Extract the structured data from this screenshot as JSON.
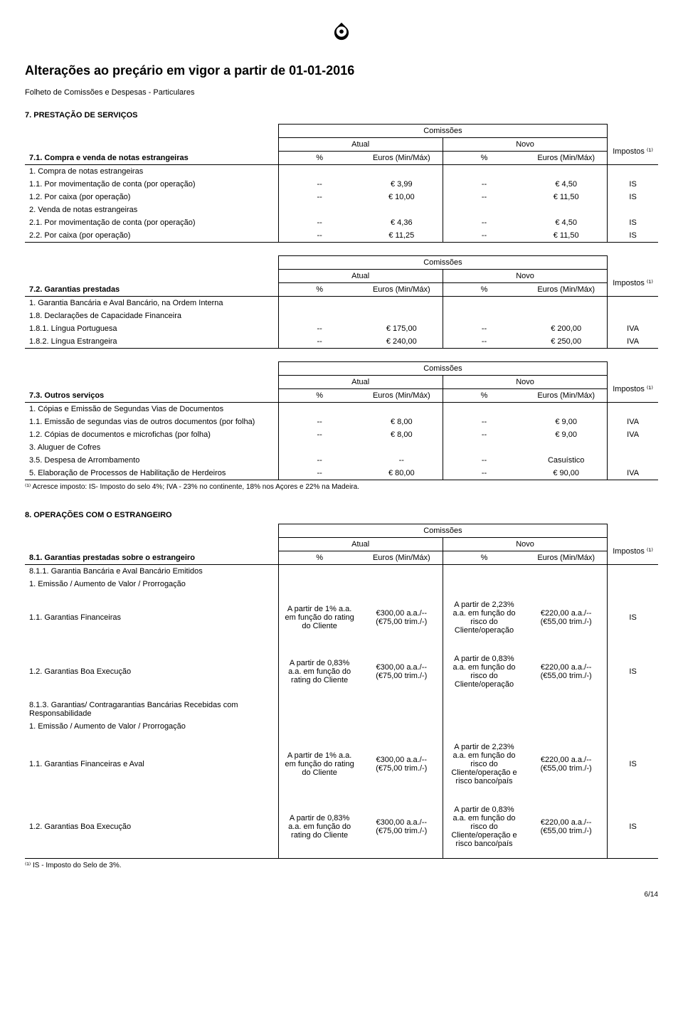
{
  "header": {
    "title": "Alterações ao preçário em vigor a partir de 01-01-2016",
    "subtitle": "Folheto de Comissões e Despesas - Particulares"
  },
  "labels": {
    "comissoes": "Comissões",
    "atual": "Atual",
    "novo": "Novo",
    "impostos": "Impostos ⁽¹⁾",
    "pct": "%",
    "euros": "Euros (Min/Máx)"
  },
  "section7": {
    "title": "7. PRESTAÇÃO DE SERVIÇOS",
    "t71": {
      "name": "7.1. Compra e venda de notas estrangeiras",
      "groups": [
        {
          "label": "1. Compra de notas estrangeiras",
          "rows": [
            {
              "desc": "1.1. Por movimentação de conta (por operação)",
              "a_pct": "--",
              "a_eur": "€ 3,99",
              "n_pct": "--",
              "n_eur": "€ 4,50",
              "tax": "IS"
            },
            {
              "desc": "1.2. Por caixa (por operação)",
              "a_pct": "--",
              "a_eur": "€ 10,00",
              "n_pct": "--",
              "n_eur": "€ 11,50",
              "tax": "IS"
            }
          ]
        },
        {
          "label": "2. Venda de notas estrangeiras",
          "rows": [
            {
              "desc": "2.1. Por movimentação de conta (por operação)",
              "a_pct": "--",
              "a_eur": "€ 4,36",
              "n_pct": "--",
              "n_eur": "€ 4,50",
              "tax": "IS"
            },
            {
              "desc": "2.2. Por caixa (por operação)",
              "a_pct": "--",
              "a_eur": "€ 11,25",
              "n_pct": "--",
              "n_eur": "€ 11,50",
              "tax": "IS"
            }
          ]
        }
      ]
    },
    "t72": {
      "name": "7.2. Garantias prestadas",
      "pre_rows": [
        "1. Garantia Bancária e Aval Bancário, na Ordem Interna",
        "1.8. Declarações de Capacidade Financeira"
      ],
      "rows": [
        {
          "desc": "1.8.1. Língua Portuguesa",
          "a_pct": "--",
          "a_eur": "€ 175,00",
          "n_pct": "--",
          "n_eur": "€ 200,00",
          "tax": "IVA"
        },
        {
          "desc": "1.8.2. Língua Estrangeira",
          "a_pct": "--",
          "a_eur": "€ 240,00",
          "n_pct": "--",
          "n_eur": "€ 250,00",
          "tax": "IVA"
        }
      ]
    },
    "t73": {
      "name": "7.3. Outros serviços",
      "pre_rows": [
        "1. Cópias e Emissão de Segundas Vias de Documentos"
      ],
      "rows": [
        {
          "desc": "1.1. Emissão de segundas vias de outros documentos (por folha)",
          "a_pct": "--",
          "a_eur": "€ 8,00",
          "n_pct": "--",
          "n_eur": "€ 9,00",
          "tax": "IVA"
        },
        {
          "desc": "1.2. Cópias de documentos e microfichas (por folha)",
          "a_pct": "--",
          "a_eur": "€ 8,00",
          "n_pct": "--",
          "n_eur": "€ 9,00",
          "tax": "IVA"
        }
      ],
      "mid_label": "3. Aluguer de Cofres",
      "mid_rows": [
        {
          "desc": "3.5. Despesa de Arrombamento",
          "a_pct": "--",
          "a_eur": "--",
          "n_pct": "--",
          "n_eur": "Casuístico",
          "tax": ""
        }
      ],
      "final_rows": [
        {
          "desc": "5. Elaboração de Processos de Habilitação de Herdeiros",
          "a_pct": "--",
          "a_eur": "€ 80,00",
          "n_pct": "--",
          "n_eur": "€ 90,00",
          "tax": "IVA"
        }
      ]
    },
    "footnote7": "⁽¹⁾ Acresce imposto: IS- Imposto do selo 4%; IVA - 23% no continente, 18% nos Açores e 22% na Madeira."
  },
  "section8": {
    "title": "8. OPERAÇÕES COM O ESTRANGEIRO",
    "t81": {
      "name": "8.1. Garantias prestadas sobre o estrangeiro",
      "sub1": "8.1.1. Garantia Bancária e Aval Bancário Emitidos",
      "emiss": "1. Emissão / Aumento de Valor / Prorrogação",
      "rows": [
        {
          "desc": "1.1. Garantias Financeiras",
          "a_pct": "A partir de 1% a.a. em função do rating do Cliente",
          "a_eur": "€300,00 a.a./-- (€75,00 trim./-)",
          "n_pct": "A partir de 2,23% a.a. em função do risco do Cliente/operação",
          "n_eur": "€220,00 a.a./-- (€55,00 trim./-)",
          "tax": "IS"
        },
        {
          "desc": "1.2. Garantias Boa Execução",
          "a_pct": "A partir de 0,83% a.a. em função do rating do Cliente",
          "a_eur": "€300,00 a.a./-- (€75,00 trim./-)",
          "n_pct": "A partir de 0,83% a.a. em função do risco do Cliente/operação",
          "n_eur": "€220,00 a.a./-- (€55,00 trim./-)",
          "tax": "IS"
        }
      ],
      "sub3": "8.1.3. Garantias/ Contragarantias Bancárias Recebidas com Responsabilidade",
      "rows2": [
        {
          "desc": "1.1. Garantias Financeiras e Aval",
          "a_pct": "A partir de 1% a.a. em função do rating do Cliente",
          "a_eur": "€300,00 a.a./-- (€75,00 trim./-)",
          "n_pct": "A partir de 2,23% a.a. em função do risco do Cliente/operação e risco banco/país",
          "n_eur": "€220,00 a.a./-- (€55,00 trim./-)",
          "tax": "IS"
        },
        {
          "desc": "1.2. Garantias Boa Execução",
          "a_pct": "A partir de 0,83% a.a. em função do rating do Cliente",
          "a_eur": "€300,00 a.a./-- (€75,00 trim./-)",
          "n_pct": "A partir de 0,83% a.a. em função do risco do Cliente/operação e risco banco/país",
          "n_eur": "€220,00 a.a./-- (€55,00 trim./-)",
          "tax": "IS"
        }
      ]
    },
    "footnote8": "⁽¹⁾ IS - Imposto do Selo de 3%."
  },
  "page": "6/14"
}
